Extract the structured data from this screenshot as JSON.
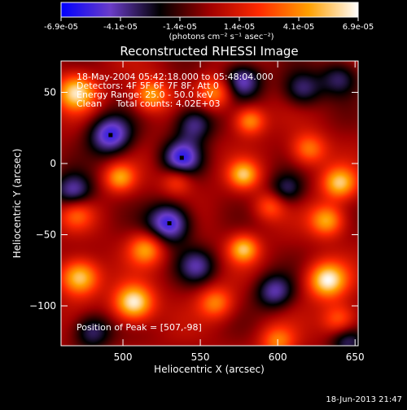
{
  "window": {
    "footer_timestamp": "18-Jun-2013 21:47"
  },
  "colorbar": {
    "ticks": [
      "-6.9e-05",
      "-4.1e-05",
      "-1.4e-05",
      "1.4e-05",
      "4.1e-05",
      "6.9e-05"
    ],
    "unit_label": "(photons cm⁻² s⁻¹ asec⁻²)",
    "colormap_stops": [
      "#0000ff",
      "#6a3cc8",
      "#000000",
      "#a00000",
      "#ff2a00",
      "#ffa000",
      "#ffffff"
    ]
  },
  "chart_data": {
    "type": "heatmap",
    "title": "Reconstructed RHESSI Image",
    "xlabel": "Heliocentric X (arcsec)",
    "ylabel": "Heliocentric Y (arcsec)",
    "xlim": [
      460,
      652
    ],
    "ylim": [
      -128,
      72
    ],
    "xticks": [
      500,
      550,
      600,
      650
    ],
    "yticks": [
      50,
      0,
      -50,
      -100
    ],
    "annotations": [
      "18-May-2004 05:42:18.000 to 05:48:04.000",
      "Detectors: 4F 5F 6F 7F 8F, Att 0",
      "Energy Range: 25.0 - 50.0 keV",
      "Clean     Total counts: 4.02E+03",
      "Position of Peak = [507,-98]"
    ],
    "peak": {
      "x": 507,
      "y": -98
    },
    "value_range": [
      -6.9e-05,
      6.9e-05
    ],
    "sources": [
      {
        "x": 507,
        "y": -98,
        "value": 6.9e-05,
        "sigma": 9
      },
      {
        "x": 472,
        "y": -80,
        "value": 6.2e-05,
        "sigma": 9
      },
      {
        "x": 632,
        "y": -82,
        "value": 6.6e-05,
        "sigma": 9
      },
      {
        "x": 578,
        "y": -60,
        "value": 5.2e-05,
        "sigma": 7
      },
      {
        "x": 632,
        "y": -40,
        "value": 5e-05,
        "sigma": 8
      },
      {
        "x": 578,
        "y": -8,
        "value": 5e-05,
        "sigma": 7
      },
      {
        "x": 640,
        "y": -14,
        "value": 5.4e-05,
        "sigma": 8
      },
      {
        "x": 620,
        "y": 10,
        "value": 4e-05,
        "sigma": 8
      },
      {
        "x": 470,
        "y": 50,
        "value": 6e-05,
        "sigma": 9
      },
      {
        "x": 498,
        "y": -10,
        "value": 4.4e-05,
        "sigma": 7
      },
      {
        "x": 518,
        "y": 48,
        "value": 4.8e-05,
        "sigma": 8
      },
      {
        "x": 560,
        "y": 50,
        "value": 4.2e-05,
        "sigma": 8
      },
      {
        "x": 582,
        "y": 30,
        "value": 4.6e-05,
        "sigma": 7
      },
      {
        "x": 515,
        "y": -60,
        "value": 4.6e-05,
        "sigma": 8
      },
      {
        "x": 560,
        "y": -98,
        "value": 4e-05,
        "sigma": 8
      },
      {
        "x": 640,
        "y": -110,
        "value": 3.8e-05,
        "sigma": 8
      },
      {
        "x": 600,
        "y": -125,
        "value": 3.8e-05,
        "sigma": 8
      },
      {
        "x": 470,
        "y": -35,
        "value": 3.2e-05,
        "sigma": 8
      },
      {
        "x": 535,
        "y": -12,
        "value": 3e-05,
        "sigma": 7
      },
      {
        "x": 595,
        "y": -30,
        "value": 3e-05,
        "sigma": 7
      },
      {
        "x": 492,
        "y": 20,
        "value": -5.6e-05,
        "sigma": 10
      },
      {
        "x": 538,
        "y": 4,
        "value": -5.2e-05,
        "sigma": 9
      },
      {
        "x": 530,
        "y": -42,
        "value": -6e-05,
        "sigma": 10
      },
      {
        "x": 577,
        "y": 58,
        "value": -4.8e-05,
        "sigma": 9
      },
      {
        "x": 546,
        "y": 28,
        "value": -4.2e-05,
        "sigma": 9
      },
      {
        "x": 468,
        "y": -20,
        "value": -4.5e-05,
        "sigma": 9
      },
      {
        "x": 616,
        "y": 52,
        "value": -3.6e-05,
        "sigma": 9
      },
      {
        "x": 598,
        "y": -90,
        "value": -4.2e-05,
        "sigma": 9
      },
      {
        "x": 548,
        "y": -72,
        "value": -3.6e-05,
        "sigma": 9
      },
      {
        "x": 480,
        "y": -118,
        "value": -3.8e-05,
        "sigma": 9
      },
      {
        "x": 640,
        "y": 60,
        "value": -3.5e-05,
        "sigma": 9
      },
      {
        "x": 606,
        "y": -18,
        "value": -3.2e-05,
        "sigma": 8
      },
      {
        "x": 645,
        "y": -125,
        "value": -3.4e-05,
        "sigma": 8
      }
    ],
    "minima_markers": [
      {
        "x": 492,
        "y": 20
      },
      {
        "x": 538,
        "y": 4
      },
      {
        "x": 530,
        "y": -42
      }
    ]
  }
}
